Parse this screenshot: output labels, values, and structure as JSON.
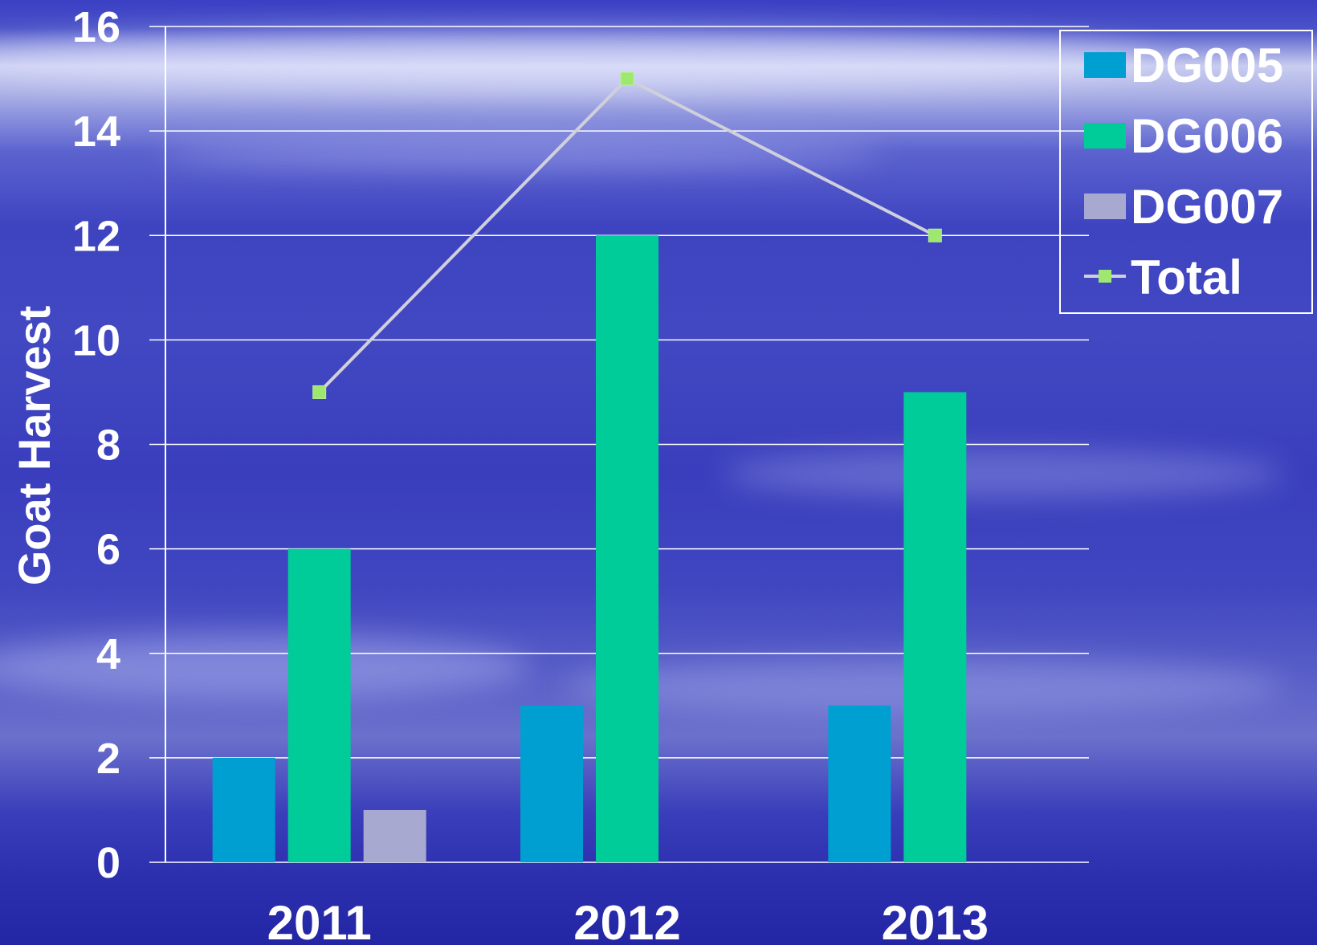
{
  "chart_data": {
    "type": "bar",
    "categories": [
      "2011",
      "2012",
      "2013"
    ],
    "series": [
      {
        "name": "DG005",
        "values": [
          2,
          3,
          3
        ],
        "color": "#009fd1"
      },
      {
        "name": "DG006",
        "values": [
          6,
          12,
          9
        ],
        "color": "#00cc99"
      },
      {
        "name": "DG007",
        "values": [
          1,
          0,
          0
        ],
        "color": "#a8a9d0"
      }
    ],
    "line_series": {
      "name": "Total",
      "values": [
        9,
        15,
        12
      ],
      "color": "#d0d0dc",
      "marker_color": "#9fe870"
    },
    "ylabel": "Goat Harvest",
    "ylim": [
      0,
      16
    ],
    "yticks": [
      0,
      2,
      4,
      6,
      8,
      10,
      12,
      14,
      16
    ],
    "grid": true,
    "legend_position": "top-right"
  }
}
